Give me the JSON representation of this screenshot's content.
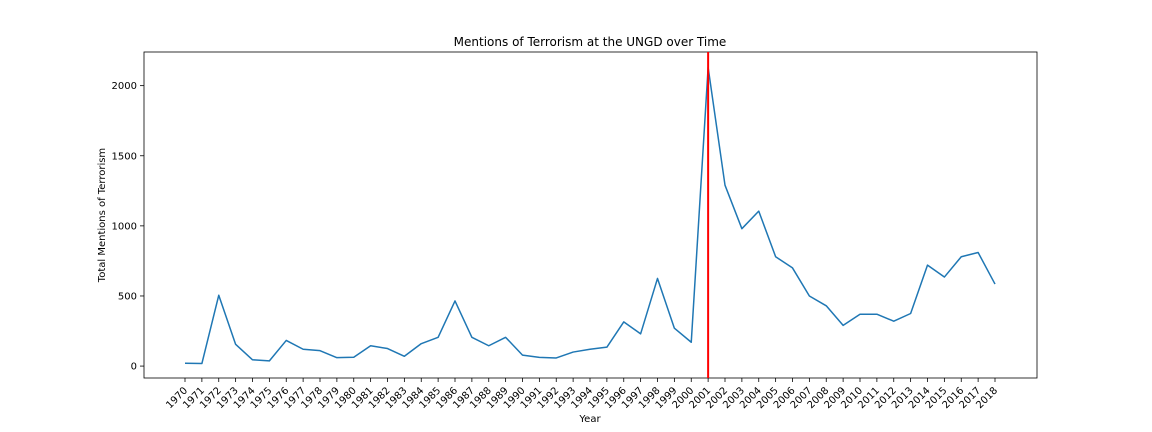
{
  "chart_data": {
    "type": "line",
    "title": "Mentions of Terrorism at the UNGD over Time",
    "xlabel": "Year",
    "ylabel": "Total Mentions of Terrorism",
    "ylim": [
      -85,
      2240
    ],
    "yticks": [
      0,
      500,
      1000,
      1500,
      2000
    ],
    "grid": false,
    "x": [
      "1970",
      "1971",
      "1972",
      "1973",
      "1974",
      "1975",
      "1976",
      "1977",
      "1978",
      "1979",
      "1980",
      "1981",
      "1982",
      "1983",
      "1984",
      "1985",
      "1986",
      "1987",
      "1988",
      "1989",
      "1990",
      "1991",
      "1992",
      "1993",
      "1994",
      "1995",
      "1996",
      "1997",
      "1998",
      "1999",
      "2000",
      "2001",
      "2002",
      "2003",
      "2004",
      "2005",
      "2006",
      "2007",
      "2008",
      "2009",
      "2010",
      "2011",
      "2012",
      "2013",
      "2014",
      "2015",
      "2016",
      "2017",
      "2018"
    ],
    "series": [
      {
        "color": "#1f77b4",
        "values": [
          20,
          18,
          505,
          155,
          45,
          37,
          183,
          120,
          110,
          60,
          63,
          145,
          125,
          70,
          160,
          205,
          465,
          205,
          145,
          205,
          78,
          62,
          58,
          100,
          120,
          135,
          315,
          230,
          625,
          270,
          170,
          2130,
          1290,
          980,
          1105,
          780,
          700,
          500,
          430,
          290,
          370,
          370,
          320,
          375,
          720,
          635,
          780,
          810,
          585
        ]
      }
    ],
    "annotations": [
      {
        "type": "vertical-line",
        "x": "2001",
        "color": "#ff0000"
      }
    ]
  }
}
